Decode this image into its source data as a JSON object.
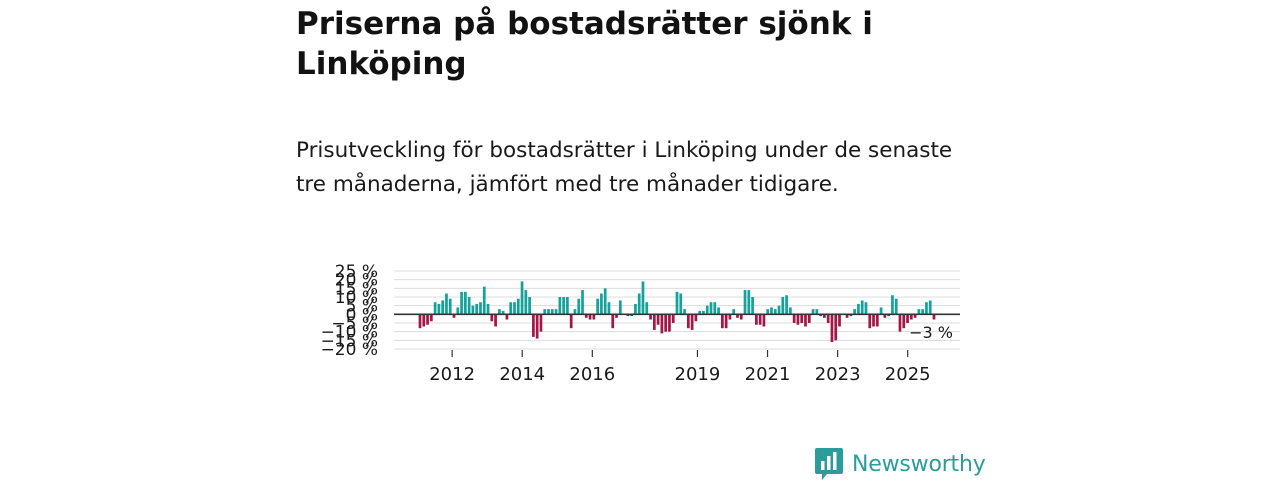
{
  "article": {
    "title": "Priserna på bostadsrätter sjönk i Linköping",
    "subtitle": "Prisutveckling för bostadsrätter i Linköping under de senaste tre månaderna, jämfört med tre månader tidigare."
  },
  "brand": {
    "name": "Newsworthy",
    "color": "#2a9d9a"
  },
  "colors": {
    "positive": "#13a39a",
    "negative": "#a51648",
    "grid": "#dcdcdc",
    "zero_line": "#333333",
    "text": "#1a1a1a"
  },
  "chart_data": {
    "type": "bar",
    "title": "",
    "xlabel": "",
    "ylabel": "",
    "unit": "%",
    "ylim": [
      -20,
      25
    ],
    "yticks": [
      25,
      20,
      15,
      10,
      5,
      0,
      -5,
      -10,
      -15,
      -20
    ],
    "ytick_labels": [
      "25 %",
      "20 %",
      "15 %",
      "10 %",
      "5 %",
      "0 %",
      "−5 %",
      "−10 %",
      "−15 %",
      "−20 %"
    ],
    "xticks": [
      "2012",
      "2014",
      "2016",
      "2019",
      "2021",
      "2023",
      "2025"
    ],
    "xtick_positions": [
      2012,
      2014,
      2016,
      2019,
      2021,
      2023,
      2025
    ],
    "x_start": 2011.083,
    "x_end": 2025.75,
    "last_value_label": "−3 %",
    "values": [
      -8,
      -7,
      -6,
      -4,
      7,
      6,
      8,
      12,
      9,
      -2,
      4,
      13,
      13,
      10,
      5,
      6,
      7,
      16,
      6,
      -4,
      -7,
      3,
      2,
      -3,
      7,
      7,
      9,
      19,
      14,
      10,
      -13,
      -14,
      -10,
      3,
      3,
      3,
      3,
      10,
      10,
      10,
      -8,
      3,
      9,
      14,
      -2,
      -3,
      -3,
      9,
      12,
      15,
      7,
      -8,
      -2,
      8,
      0,
      -1,
      -1,
      6,
      12,
      19,
      7,
      -3,
      -9,
      -6,
      -11,
      -10,
      -10,
      -5,
      13,
      12,
      3,
      -8,
      -9,
      -4,
      2,
      2,
      5,
      7,
      7,
      4,
      -8,
      -8,
      -3,
      3,
      -2,
      -3,
      14,
      14,
      10,
      -6,
      -6,
      -7,
      3,
      4,
      3,
      5,
      10,
      11,
      4,
      -5,
      -6,
      -5,
      -7,
      -5,
      3,
      3,
      -1,
      -2,
      -5,
      -16,
      -15,
      -7,
      0,
      -2,
      -1,
      3,
      6,
      8,
      7,
      -8,
      -7,
      -7,
      4,
      -2,
      -1,
      11,
      9,
      -10,
      -8,
      -5,
      -3,
      -2,
      3,
      3,
      7,
      8,
      -3
    ]
  }
}
